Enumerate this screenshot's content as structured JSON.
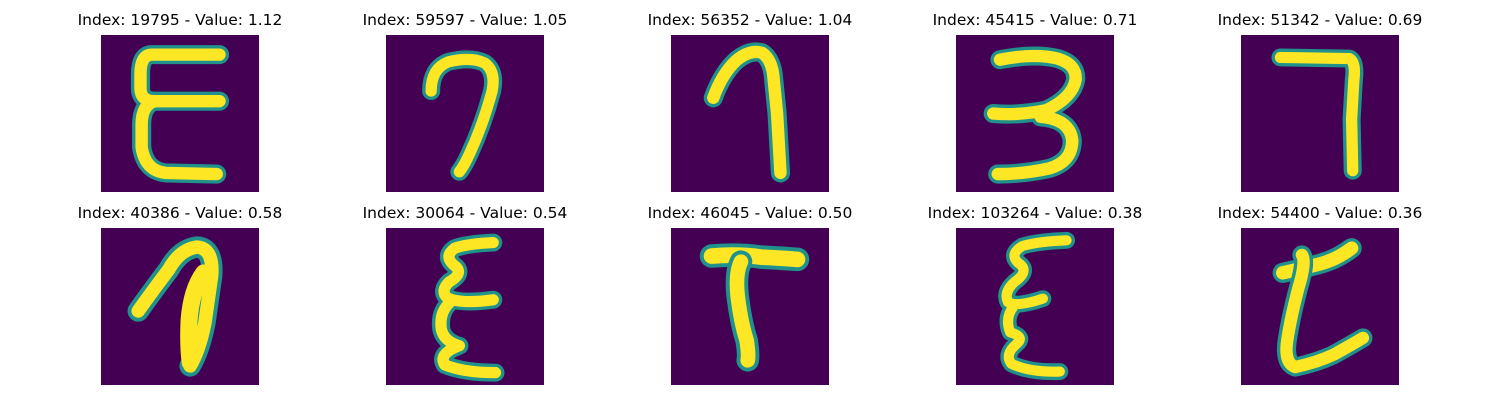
{
  "colormap": {
    "background": "#440154",
    "edge": "#21918c",
    "mid": "#5ec962",
    "peak": "#fde725"
  },
  "samples": [
    {
      "title": "Index: 19795 - Value: 1.12",
      "index": 19795,
      "value": 1.12
    },
    {
      "title": "Index: 59597 - Value: 1.05",
      "index": 59597,
      "value": 1.05
    },
    {
      "title": "Index: 56352 - Value: 1.04",
      "index": 56352,
      "value": 1.04
    },
    {
      "title": "Index: 45415 - Value: 0.71",
      "index": 45415,
      "value": 0.71
    },
    {
      "title": "Index: 51342 - Value: 0.69",
      "index": 51342,
      "value": 0.69
    },
    {
      "title": "Index: 40386 - Value: 0.58",
      "index": 40386,
      "value": 0.58
    },
    {
      "title": "Index: 30064 - Value: 0.54",
      "index": 30064,
      "value": 0.54
    },
    {
      "title": "Index: 46045 - Value: 0.50",
      "index": 46045,
      "value": 0.5
    },
    {
      "title": "Index: 103264 - Value: 0.38",
      "index": 103264,
      "value": 0.38
    },
    {
      "title": "Index: 54400 - Value: 0.36",
      "index": 54400,
      "value": 0.36
    }
  ]
}
